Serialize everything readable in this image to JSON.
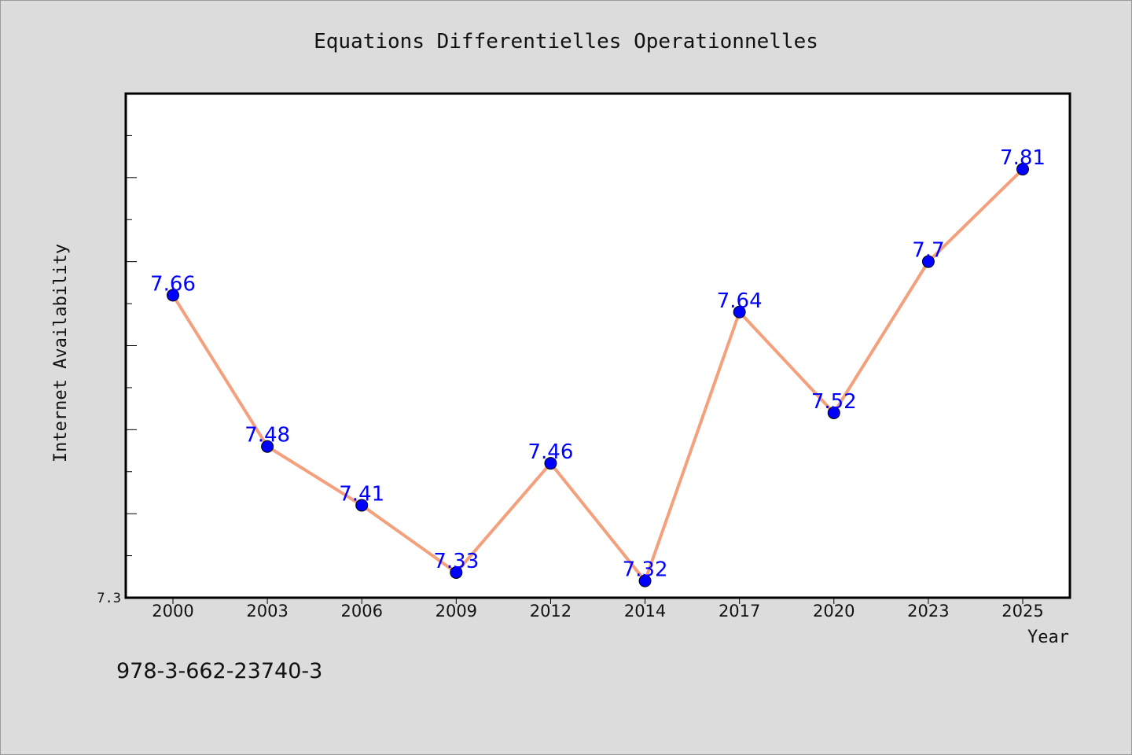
{
  "chart_data": {
    "type": "line",
    "title": "Equations Differentielles Operationnelles",
    "xlabel": "Year",
    "ylabel": "Internet Availability",
    "categories": [
      "2000",
      "2003",
      "2006",
      "2009",
      "2012",
      "2014",
      "2017",
      "2020",
      "2023",
      "2025"
    ],
    "series": [
      {
        "values": [
          7.66,
          7.48,
          7.41,
          7.33,
          7.46,
          7.32,
          7.64,
          7.52,
          7.7,
          7.81
        ],
        "labels": [
          "7.66",
          "7.48",
          "7.41",
          "7.33",
          "7.46",
          "7.32",
          "7.64",
          "7.52",
          "7.7",
          "7.81"
        ]
      }
    ],
    "ylim": [
      7.3,
      7.9
    ],
    "ytick_labels": [
      "7.3"
    ],
    "grid": false,
    "line_color": "#f4a07c",
    "marker_color": "#0000ff",
    "label_color": "#0000ff"
  },
  "footer": {
    "isbn": "978-3-662-23740-3"
  }
}
